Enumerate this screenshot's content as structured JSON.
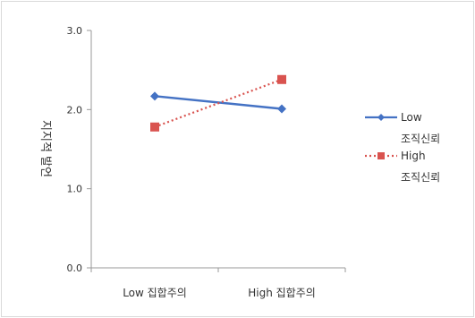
{
  "chart_data": {
    "type": "line",
    "ylabel": "지지적 발언",
    "ylim": [
      0,
      3
    ],
    "yticks": [
      "0.0",
      "1.0",
      "2.0",
      "3.0"
    ],
    "categories": [
      "Low 집합주의",
      "High 집합주의"
    ],
    "series": [
      {
        "name": "Low 조직신뢰",
        "legend_lines": [
          "Low",
          "조직신뢰"
        ],
        "values": [
          2.17,
          2.01
        ],
        "color": "#4472c4",
        "marker": "diamond",
        "line": "solid"
      },
      {
        "name": "High 조직신뢰",
        "legend_lines": [
          "High",
          "조직신뢰"
        ],
        "values": [
          1.78,
          2.38
        ],
        "color": "#d9534f",
        "marker": "square",
        "line": "dotted"
      }
    ],
    "legend_position": "right"
  }
}
